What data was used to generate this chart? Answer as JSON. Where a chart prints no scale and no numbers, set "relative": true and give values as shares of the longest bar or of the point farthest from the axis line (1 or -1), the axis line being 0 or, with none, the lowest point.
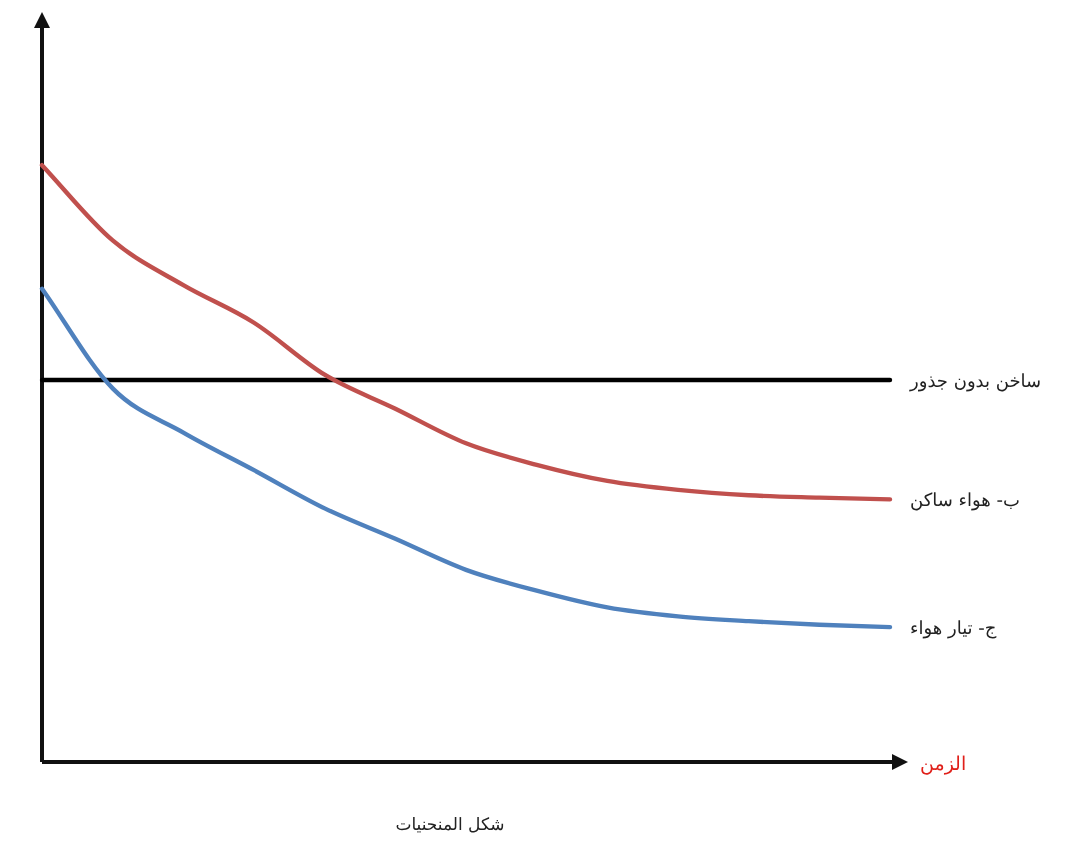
{
  "chart_data": {
    "type": "line",
    "relative": true,
    "xlabel": "الزمن",
    "annotations": [
      "شكل المنحنيات"
    ],
    "categories": [
      null,
      null,
      null,
      null,
      null,
      null,
      null,
      null,
      null,
      null,
      null,
      null,
      null
    ],
    "series": [
      {
        "name": "ساخن بدون جذور",
        "color": "#000000",
        "values": [
          0.64,
          0.64,
          0.64,
          0.64,
          0.64,
          0.64,
          0.64,
          0.64,
          0.64,
          0.64,
          0.64,
          0.64,
          0.64
        ]
      },
      {
        "name": "ب- هواء ساكن",
        "color": "#c0504d",
        "values": [
          1,
          0.874,
          0.799,
          0.736,
          0.649,
          0.592,
          0.534,
          0.498,
          0.471,
          0.456,
          0.447,
          0.443,
          0.44
        ]
      },
      {
        "name": "ج- تيار هواء",
        "color": "#4f81bd",
        "values": [
          0.793,
          0.626,
          0.552,
          0.489,
          0.425,
          0.374,
          0.322,
          0.287,
          0.259,
          0.244,
          0.236,
          0.23,
          0.226
        ]
      }
    ]
  }
}
